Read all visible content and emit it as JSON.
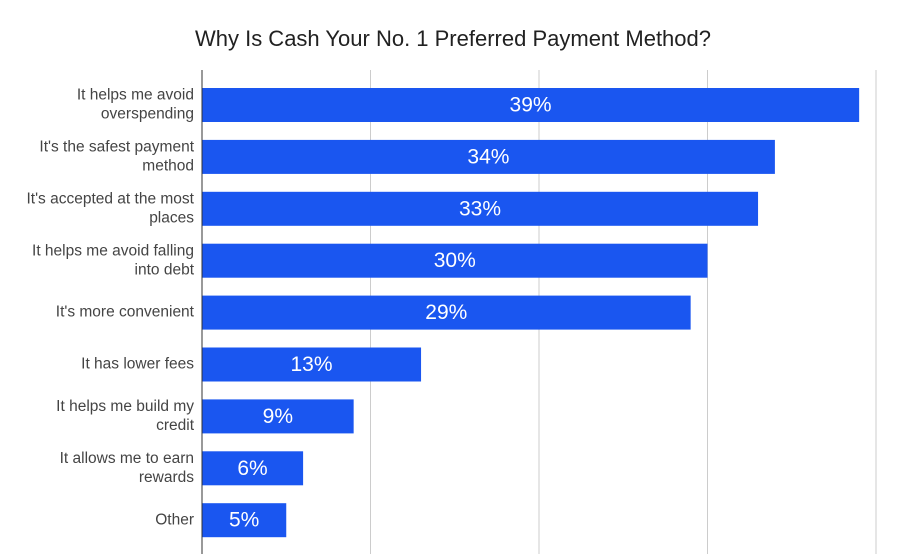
{
  "chart_data": {
    "type": "bar",
    "orientation": "horizontal",
    "title": "Why Is Cash Your No. 1 Preferred Payment Method?",
    "categories": [
      [
        "It helps me avoid",
        "overspending"
      ],
      [
        "It's the safest payment",
        "method"
      ],
      [
        "It's accepted at the most",
        "places"
      ],
      [
        "It helps me avoid falling",
        "into debt"
      ],
      [
        "It's more convenient"
      ],
      [
        "It has lower fees"
      ],
      [
        "It helps me build my",
        "credit"
      ],
      [
        "It allows me to earn",
        "rewards"
      ],
      [
        "Other"
      ]
    ],
    "values": [
      39,
      34,
      33,
      30,
      29,
      13,
      9,
      6,
      5
    ],
    "value_labels": [
      "39%",
      "34%",
      "33%",
      "30%",
      "29%",
      "13%",
      "9%",
      "6%",
      "5%"
    ],
    "xlim": [
      0,
      40
    ],
    "grid": true,
    "bar_color": "#1a56f0"
  }
}
